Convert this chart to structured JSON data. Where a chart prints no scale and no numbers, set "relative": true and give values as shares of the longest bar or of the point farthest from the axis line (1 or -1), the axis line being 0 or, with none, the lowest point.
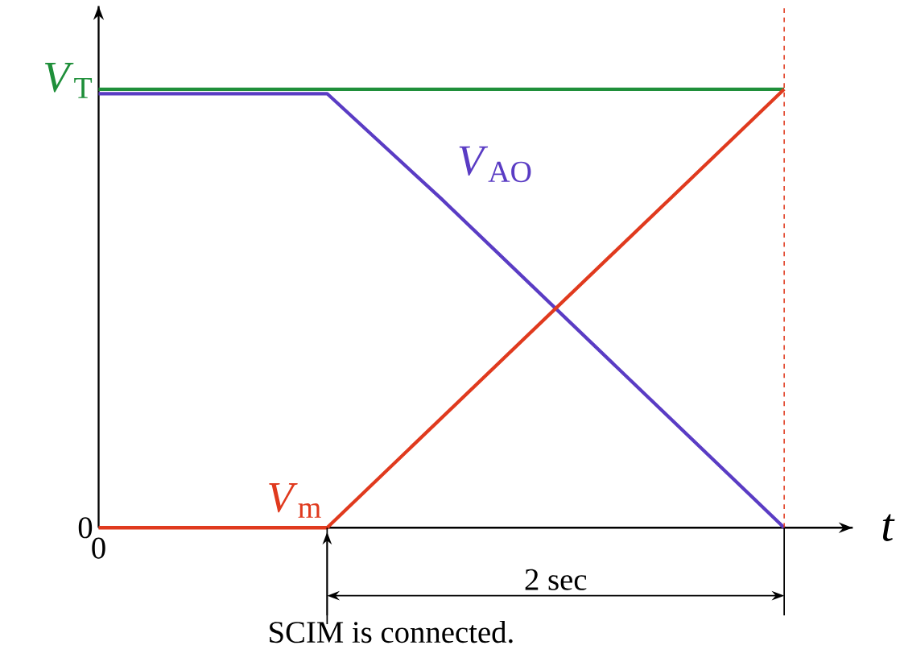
{
  "chart_data": {
    "type": "line",
    "relative": true,
    "xlabel": "*t*",
    "categories": [
      null,
      null,
      null,
      null,
      null,
      null,
      null
    ],
    "series": [
      {
        "color": "#1f8f3a",
        "values": [
          1,
          1,
          1,
          1,
          1,
          1,
          1
        ]
      },
      {
        "name": "*V*$_{AO}$",
        "color": "#5a3cc4",
        "values": [
          0.99,
          0.99,
          0.99,
          0.75,
          0.5,
          0.25,
          0
        ]
      },
      {
        "name": "*V*$_{m}$",
        "color": "#e03a1e",
        "values": [
          0,
          0,
          0,
          0.25,
          0.5,
          0.75,
          1
        ]
      }
    ],
    "annotations": [
      "0",
      "*V*$_{T}$",
      "0",
      "2 sec",
      "SCIM is connected."
    ],
    "marker": "none",
    "line_style": "solid"
  }
}
